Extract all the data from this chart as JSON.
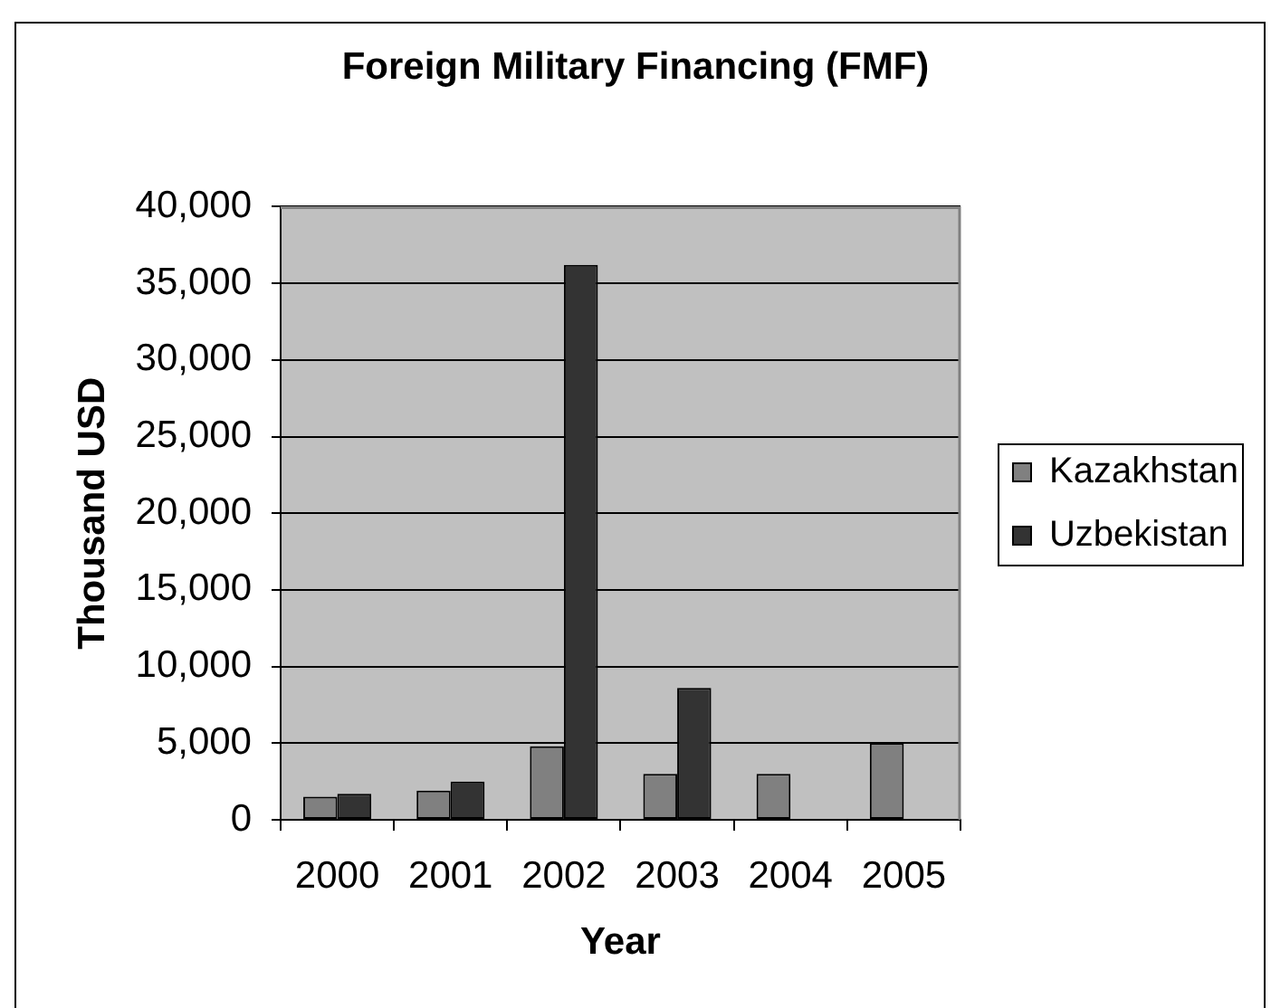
{
  "chart_data": {
    "type": "bar",
    "title": "Foreign Military Financing (FMF)",
    "xlabel": "Year",
    "ylabel": "Thousand USD",
    "categories": [
      "2000",
      "2001",
      "2002",
      "2003",
      "2004",
      "2005"
    ],
    "series": [
      {
        "name": "Kazakhstan",
        "color": "#808080",
        "values": [
          1500,
          1900,
          4800,
          3000,
          3000,
          5000
        ]
      },
      {
        "name": "Uzbekistan",
        "color": "#333333",
        "values": [
          1700,
          2500,
          36200,
          8600,
          null,
          null
        ]
      }
    ],
    "ylim": [
      0,
      40000
    ],
    "yticks": [
      {
        "value": 0,
        "label": "0"
      },
      {
        "value": 5000,
        "label": "5,000"
      },
      {
        "value": 10000,
        "label": "10,000"
      },
      {
        "value": 15000,
        "label": "15,000"
      },
      {
        "value": 20000,
        "label": "20,000"
      },
      {
        "value": 25000,
        "label": "25,000"
      },
      {
        "value": 30000,
        "label": "30,000"
      },
      {
        "value": 35000,
        "label": "35,000"
      },
      {
        "value": 40000,
        "label": "40,000"
      }
    ],
    "grid": "y",
    "legend": "right"
  }
}
